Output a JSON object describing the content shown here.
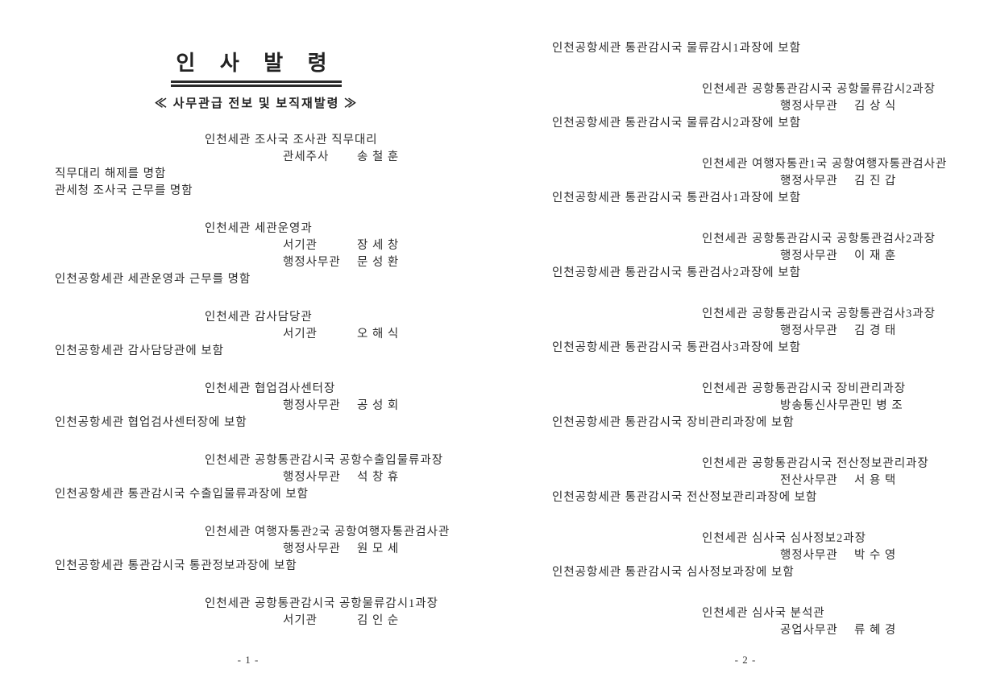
{
  "page1": {
    "title": "인 사 발 령",
    "subtitle": "≪ 사무관급 전보 및 보직재발령 ≫",
    "footer": "- 1 -",
    "blocks": [
      {
        "position": "인천세관 조사국 조사관 직무대리",
        "appointees": [
          {
            "rank": "관세주사",
            "name": "송 철 훈"
          }
        ],
        "directives": [
          "직무대리 해제를 명함",
          "관세청 조사국 근무를 명함"
        ]
      },
      {
        "position": "인천세관 세관운영과",
        "appointees": [
          {
            "rank": "서기관",
            "name": "장 세 창"
          },
          {
            "rank": "행정사무관",
            "name": "문 성 환"
          }
        ],
        "directives": [
          "인천공항세관 세관운영과 근무를 명함"
        ]
      },
      {
        "position": "인천세관 감사담당관",
        "appointees": [
          {
            "rank": "서기관",
            "name": "오 해 식"
          }
        ],
        "directives": [
          "인천공항세관 감사담당관에 보함"
        ]
      },
      {
        "position": "인천세관 협업검사센터장",
        "appointees": [
          {
            "rank": "행정사무관",
            "name": "공 성 회"
          }
        ],
        "directives": [
          "인천공항세관 협업검사센터장에 보함"
        ]
      },
      {
        "position": "인천세관 공항통관감시국 공항수출입물류과장",
        "appointees": [
          {
            "rank": "행정사무관",
            "name": "석 창 휴"
          }
        ],
        "directives": [
          "인천공항세관 통관감시국 수출입물류과장에 보함"
        ]
      },
      {
        "position": "인천세관 여행자통관2국 공항여행자통관검사관",
        "appointees": [
          {
            "rank": "행정사무관",
            "name": "원 모 세"
          }
        ],
        "directives": [
          "인천공항세관 통관감시국 통관정보과장에 보함"
        ]
      },
      {
        "position": "인천세관 공항통관감시국 공항물류감시1과장",
        "appointees": [
          {
            "rank": "서기관",
            "name": "김 인 순"
          }
        ],
        "directives": []
      }
    ]
  },
  "page2": {
    "leading_directive": "인천공항세관 통관감시국 물류감시1과장에 보함",
    "footer": "- 2 -",
    "blocks": [
      {
        "position": "인천세관 공항통관감시국 공항물류감시2과장",
        "appointees": [
          {
            "rank": "행정사무관",
            "name": "김 상 식"
          }
        ],
        "directives": [
          "인천공항세관 통관감시국 물류감시2과장에 보함"
        ]
      },
      {
        "position": "인천세관 여행자통관1국 공항여행자통관검사관",
        "appointees": [
          {
            "rank": "행정사무관",
            "name": "김 진 갑"
          }
        ],
        "directives": [
          "인천공항세관 통관감시국 통관검사1과장에 보함"
        ]
      },
      {
        "position": "인천세관 공항통관감시국 공항통관검사2과장",
        "appointees": [
          {
            "rank": "행정사무관",
            "name": "이 재 훈"
          }
        ],
        "directives": [
          "인천공항세관 통관감시국 통관검사2과장에 보함"
        ]
      },
      {
        "position": "인천세관 공항통관감시국 공항통관검사3과장",
        "appointees": [
          {
            "rank": "행정사무관",
            "name": "김 경 태"
          }
        ],
        "directives": [
          "인천공항세관 통관감시국 통관검사3과장에 보함"
        ]
      },
      {
        "position": "인천세관 공항통관감시국 장비관리과장",
        "appointees": [
          {
            "rank": "방송통신사무관",
            "name": "민 병 조"
          }
        ],
        "directives": [
          "인천공항세관 통관감시국 장비관리과장에 보함"
        ]
      },
      {
        "position": "인천세관 공항통관감시국 전산정보관리과장",
        "appointees": [
          {
            "rank": "전산사무관",
            "name": "서 용 택"
          }
        ],
        "directives": [
          "인천공항세관 통관감시국 전산정보관리과장에 보함"
        ]
      },
      {
        "position": "인천세관 심사국 심사정보2과장",
        "appointees": [
          {
            "rank": "행정사무관",
            "name": "박 수 영"
          }
        ],
        "directives": [
          "인천공항세관 통관감시국 심사정보과장에 보함"
        ]
      },
      {
        "position": "인천세관 심사국 분석관",
        "appointees": [
          {
            "rank": "공업사무관",
            "name": "류 혜 경"
          }
        ],
        "directives": []
      }
    ]
  }
}
